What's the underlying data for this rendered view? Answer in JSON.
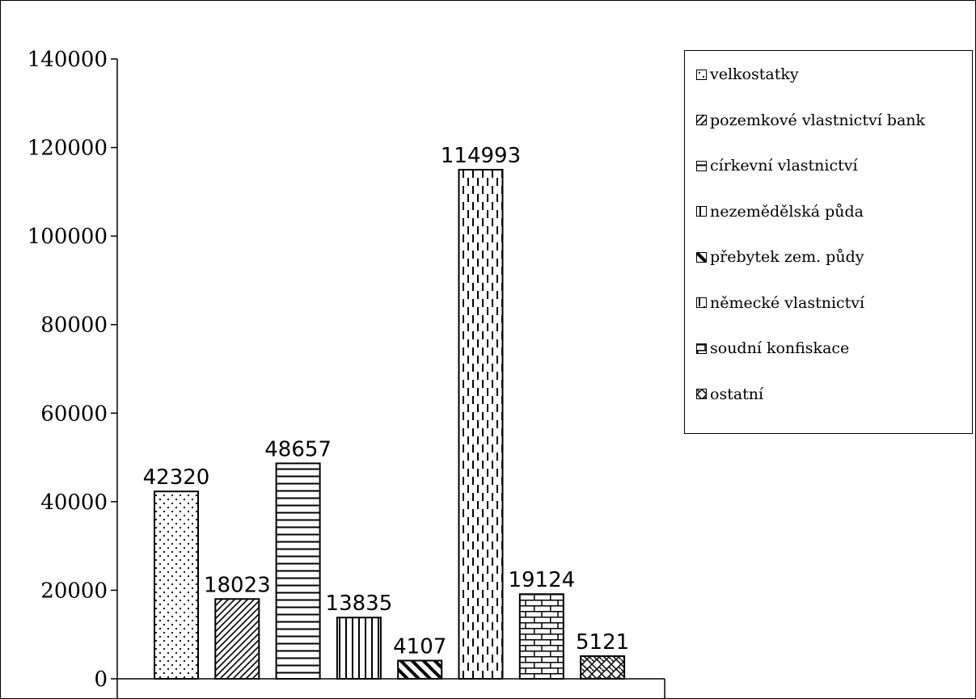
{
  "chart_data": {
    "type": "bar",
    "categories": [
      "velkostatky",
      "pozemkové vlastnictví bank",
      "církevní vlastnictví",
      "nezemědělská půda",
      "přebytek zem. půdy",
      "německé vlastnictví",
      "soudní konfiskace",
      "ostatní"
    ],
    "values": [
      42320,
      18023,
      48657,
      13835,
      4107,
      114993,
      19124,
      5121
    ],
    "data_labels": [
      "42320",
      "18023",
      "48657",
      "13835",
      "4107",
      "114993",
      "19124",
      "5121"
    ],
    "y_ticks": [
      "0",
      "20000",
      "40000",
      "60000",
      "80000",
      "100000",
      "120000",
      "140000"
    ],
    "ylim": [
      0,
      140000
    ],
    "title": "",
    "xlabel": "",
    "ylabel": "",
    "grid": false,
    "legend_position": "right",
    "legend": [
      "velkostatky",
      "pozemkové vlastnictví bank",
      "církevní vlastnictví",
      "nezemědělská půda",
      "přebytek zem. půdy",
      "německé vlastnictví",
      "soudní konfiskace",
      "ostatní"
    ],
    "patterns": [
      "dots",
      "diagonal-lines",
      "horizontal-lines",
      "vertical-lines",
      "wide-diagonal",
      "dashed-vertical",
      "bricks",
      "weave"
    ],
    "colors": {
      "bar_fill": "#ffffff",
      "stroke": "#000000",
      "background": "#ffffff"
    }
  }
}
